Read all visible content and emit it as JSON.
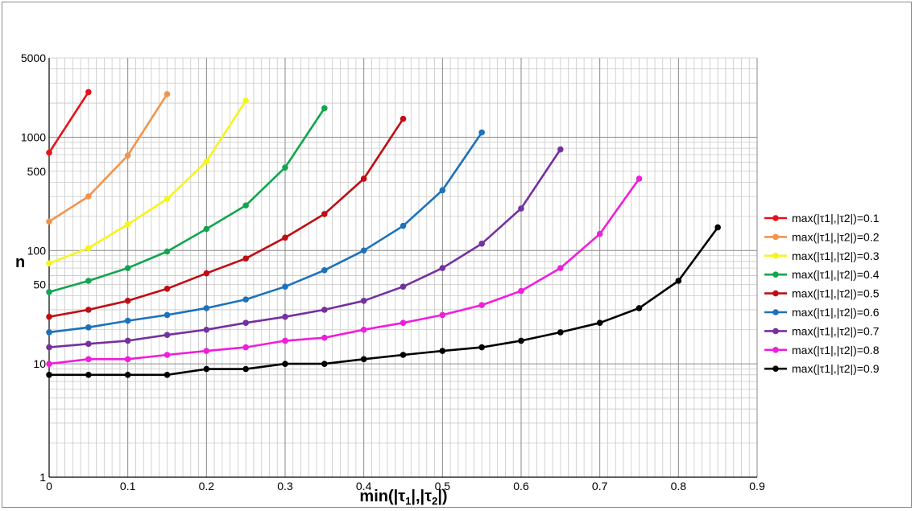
{
  "chart_data": {
    "type": "line",
    "title": "",
    "xlabel": {
      "main": "min(|τ",
      "sub1": "1",
      "mid": "|,|τ",
      "sub2": "2",
      "end": "|)"
    },
    "ylabel": "n",
    "xlim": [
      0,
      0.9
    ],
    "ylim": [
      1,
      5000
    ],
    "y_scale": "log",
    "x_ticks": [
      "0",
      "0.1",
      "0.2",
      "0.3",
      "0.4",
      "0.5",
      "0.6",
      "0.7",
      "0.8",
      "0.9"
    ],
    "x_tick_values": [
      0,
      0.1,
      0.2,
      0.3,
      0.4,
      0.5,
      0.6,
      0.7,
      0.8,
      0.9
    ],
    "y_ticks": [
      "1",
      "10",
      "50",
      "100",
      "500",
      "1000",
      "5000"
    ],
    "y_tick_values": [
      1,
      10,
      50,
      100,
      500,
      1000,
      5000
    ],
    "grid": true,
    "legend_position": "right",
    "series": [
      {
        "name": "max(|τ1|,|τ2|)=0.1",
        "color": "#e8101a",
        "points": [
          [
            0,
            730
          ],
          [
            0.05,
            2500
          ]
        ]
      },
      {
        "name": "max(|τ1|,|τ2|)=0.2",
        "color": "#f4934a",
        "points": [
          [
            0,
            180
          ],
          [
            0.05,
            300
          ],
          [
            0.1,
            690
          ],
          [
            0.15,
            2400
          ]
        ]
      },
      {
        "name": "max(|τ1|,|τ2|)=0.3",
        "color": "#f5f51a",
        "points": [
          [
            0,
            77
          ],
          [
            0.05,
            105
          ],
          [
            0.1,
            170
          ],
          [
            0.15,
            285
          ],
          [
            0.2,
            610
          ],
          [
            0.25,
            2100
          ]
        ]
      },
      {
        "name": "max(|τ1|,|τ2|)=0.4",
        "color": "#12a54f",
        "points": [
          [
            0,
            43
          ],
          [
            0.05,
            54
          ],
          [
            0.1,
            70
          ],
          [
            0.15,
            98
          ],
          [
            0.2,
            155
          ],
          [
            0.25,
            250
          ],
          [
            0.3,
            540
          ],
          [
            0.35,
            1800
          ]
        ]
      },
      {
        "name": "max(|τ1|,|τ2|)=0.5",
        "color": "#c00d14",
        "points": [
          [
            0,
            26
          ],
          [
            0.05,
            30
          ],
          [
            0.1,
            36
          ],
          [
            0.15,
            46
          ],
          [
            0.2,
            63
          ],
          [
            0.25,
            85
          ],
          [
            0.3,
            130
          ],
          [
            0.35,
            210
          ],
          [
            0.4,
            430
          ],
          [
            0.45,
            1450
          ]
        ]
      },
      {
        "name": "max(|τ1|,|τ2|)=0.6",
        "color": "#1d72bb",
        "points": [
          [
            0,
            19
          ],
          [
            0.05,
            21
          ],
          [
            0.1,
            24
          ],
          [
            0.15,
            27
          ],
          [
            0.2,
            31
          ],
          [
            0.25,
            37
          ],
          [
            0.3,
            48
          ],
          [
            0.35,
            67
          ],
          [
            0.4,
            100
          ],
          [
            0.45,
            165
          ],
          [
            0.5,
            340
          ],
          [
            0.55,
            1100
          ]
        ]
      },
      {
        "name": "max(|τ1|,|τ2|)=0.7",
        "color": "#7530a0",
        "points": [
          [
            0,
            14
          ],
          [
            0.05,
            15
          ],
          [
            0.1,
            16
          ],
          [
            0.15,
            18
          ],
          [
            0.2,
            20
          ],
          [
            0.25,
            23
          ],
          [
            0.3,
            26
          ],
          [
            0.35,
            30
          ],
          [
            0.4,
            36
          ],
          [
            0.45,
            48
          ],
          [
            0.5,
            70
          ],
          [
            0.55,
            115
          ],
          [
            0.6,
            235
          ],
          [
            0.65,
            780
          ]
        ]
      },
      {
        "name": "max(|τ1|,|τ2|)=0.8",
        "color": "#f01ddc",
        "points": [
          [
            0,
            10
          ],
          [
            0.05,
            11
          ],
          [
            0.1,
            11
          ],
          [
            0.15,
            12
          ],
          [
            0.2,
            13
          ],
          [
            0.25,
            14
          ],
          [
            0.3,
            16
          ],
          [
            0.35,
            17
          ],
          [
            0.4,
            20
          ],
          [
            0.45,
            23
          ],
          [
            0.5,
            27
          ],
          [
            0.55,
            33
          ],
          [
            0.6,
            44
          ],
          [
            0.65,
            70
          ],
          [
            0.7,
            140
          ],
          [
            0.75,
            430
          ]
        ]
      },
      {
        "name": "max(|τ1|,|τ2|)=0.9",
        "color": "#000000",
        "points": [
          [
            0,
            8
          ],
          [
            0.05,
            8
          ],
          [
            0.1,
            8
          ],
          [
            0.15,
            8
          ],
          [
            0.2,
            9
          ],
          [
            0.25,
            9
          ],
          [
            0.3,
            10
          ],
          [
            0.35,
            10
          ],
          [
            0.4,
            11
          ],
          [
            0.45,
            12
          ],
          [
            0.5,
            13
          ],
          [
            0.55,
            14
          ],
          [
            0.6,
            16
          ],
          [
            0.65,
            19
          ],
          [
            0.7,
            23
          ],
          [
            0.75,
            31
          ],
          [
            0.8,
            54
          ],
          [
            0.85,
            160
          ]
        ]
      }
    ]
  }
}
